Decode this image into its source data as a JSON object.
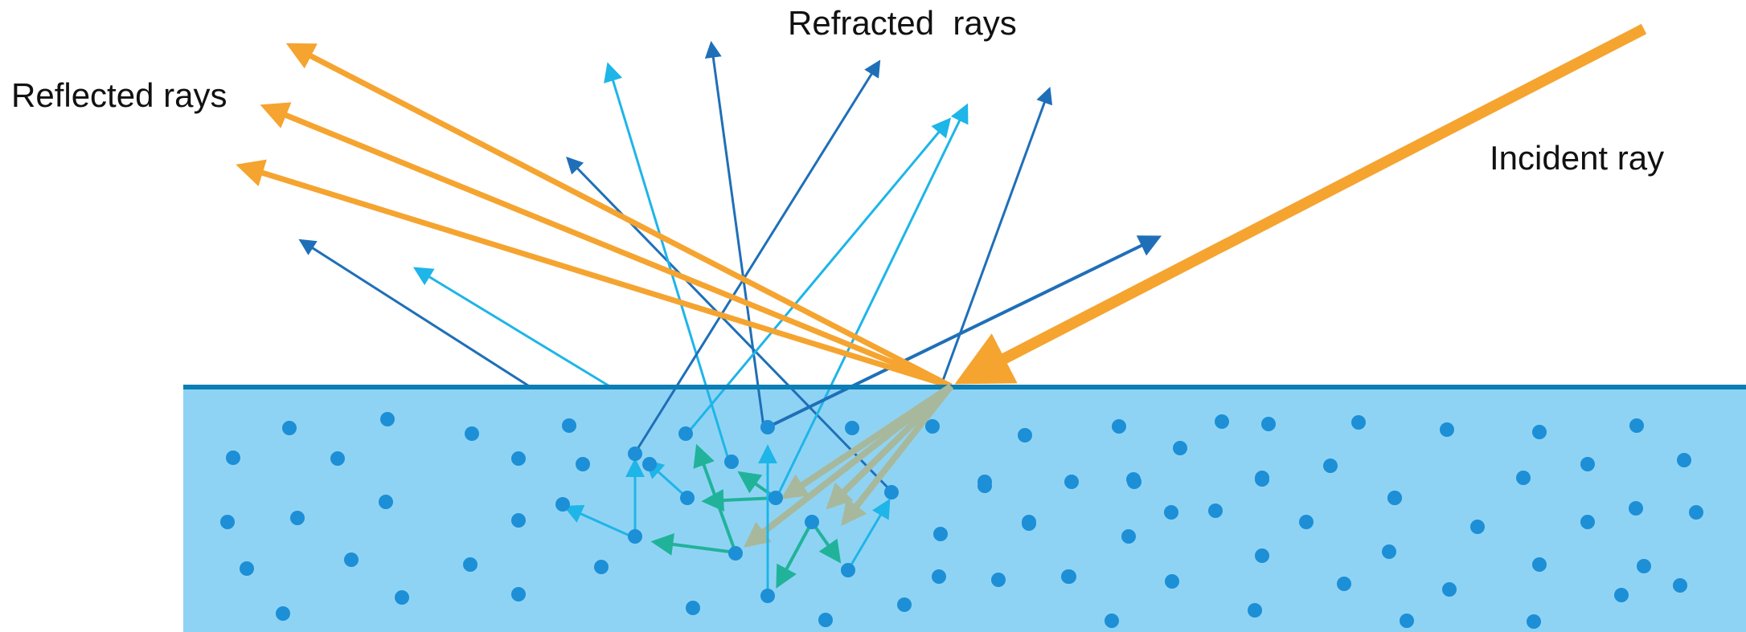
{
  "labels": {
    "reflected": "Reflected rays",
    "refracted": "Refracted  rays",
    "incident": "Incident ray"
  },
  "colors": {
    "medium": "#8fd3f4",
    "surface": "#0b7eb5",
    "particle": "#1c8fd6",
    "incident_ray": "#f5a430",
    "reflected_ray": "#f5a430",
    "refracted_dark": "#1f6fb8",
    "refracted_light": "#1eb5e8",
    "internal_scatter": "#20b39a",
    "internal_incident": "#a8b89c"
  }
}
